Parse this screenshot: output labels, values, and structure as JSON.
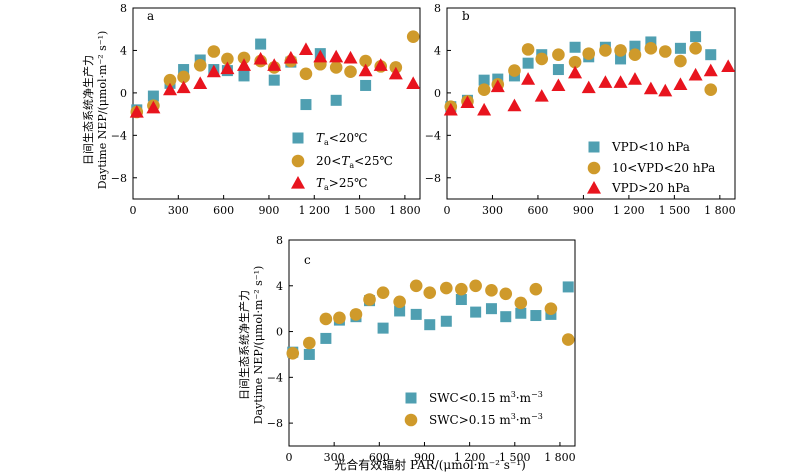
{
  "colors": {
    "square": "#4f9fb1",
    "circle": "#cf9a2b",
    "triangle": "#e8141e"
  },
  "shared": {
    "x_ticks": [
      "0",
      "300",
      "600",
      "900",
      "1 200",
      "1 500",
      "1 800"
    ],
    "y_ticks": [
      "8",
      "4",
      "0",
      "−4",
      "−8"
    ],
    "ylabel_cn": "日间生态系统净生产力",
    "ylabel_en": "Daytime NEP/(μmol·m⁻² s⁻¹)",
    "xlabel": "光合有效辐射 PAR/(μmol·m⁻² s⁻¹)"
  },
  "chart_data": [
    {
      "panel": "a",
      "type": "scatter",
      "xlim": [
        0,
        1900
      ],
      "ylim": [
        -10,
        8
      ],
      "legend_placement": "bottom-center",
      "series": [
        {
          "name_main": "T",
          "name_sub": "a",
          "name_rest": "<20℃",
          "name": "Ta<20℃",
          "marker": "square",
          "x": [
            25,
            135,
            245,
            335,
            445,
            535,
            625,
            735,
            845,
            935,
            1045,
            1145,
            1240,
            1345,
            1540
          ],
          "y": [
            -1.6,
            -0.3,
            0.9,
            2.2,
            3.1,
            2.2,
            2.1,
            1.6,
            4.6,
            1.2,
            2.9,
            -1.1,
            3.7,
            -0.7,
            0.7
          ]
        },
        {
          "name_pre": "20<",
          "name_main": "T",
          "name_sub": "a",
          "name_rest": "<25℃",
          "name": "20<Ta<25℃",
          "marker": "circle",
          "x": [
            25,
            135,
            245,
            335,
            445,
            535,
            625,
            735,
            845,
            935,
            1045,
            1145,
            1240,
            1345,
            1440,
            1540,
            1640,
            1740,
            1855
          ],
          "y": [
            -1.8,
            -1.2,
            1.2,
            1.5,
            2.6,
            3.9,
            3.2,
            3.3,
            3.0,
            2.4,
            3.0,
            1.8,
            2.7,
            2.4,
            2.0,
            3.0,
            2.5,
            2.4,
            5.3
          ]
        },
        {
          "name_main": "T",
          "name_sub": "a",
          "name_rest": ">25℃",
          "name": "Ta>25℃",
          "marker": "triangle",
          "x": [
            25,
            135,
            245,
            335,
            445,
            535,
            625,
            735,
            845,
            935,
            1045,
            1145,
            1240,
            1345,
            1440,
            1540,
            1640,
            1740,
            1855
          ],
          "y": [
            -1.8,
            -1.4,
            0.3,
            0.5,
            0.9,
            2.0,
            2.3,
            2.6,
            3.2,
            2.6,
            3.3,
            4.1,
            3.4,
            3.4,
            3.3,
            2.1,
            2.6,
            1.8,
            0.9
          ]
        }
      ]
    },
    {
      "panel": "b",
      "type": "scatter",
      "xlim": [
        0,
        1900
      ],
      "ylim": [
        -10,
        8
      ],
      "legend_placement": "bottom-center",
      "series": [
        {
          "name": "VPD<10 hPa",
          "marker": "square",
          "x": [
            25,
            135,
            245,
            335,
            445,
            535,
            625,
            735,
            845,
            935,
            1045,
            1145,
            1240,
            1345,
            1540,
            1640,
            1740
          ],
          "y": [
            -1.3,
            -0.7,
            1.2,
            1.3,
            1.6,
            2.8,
            3.6,
            2.2,
            4.3,
            3.4,
            4.3,
            3.2,
            4.4,
            4.8,
            4.2,
            5.3,
            3.6
          ]
        },
        {
          "name": "10<VPD<20 hPa",
          "marker": "circle",
          "x": [
            25,
            135,
            245,
            335,
            445,
            535,
            625,
            735,
            845,
            935,
            1045,
            1145,
            1240,
            1345,
            1440,
            1540,
            1640,
            1740
          ],
          "y": [
            -1.3,
            -0.8,
            0.3,
            0.8,
            2.1,
            4.1,
            3.2,
            3.6,
            2.9,
            3.7,
            4.0,
            4.0,
            3.6,
            4.2,
            3.9,
            3.0,
            4.2,
            0.3
          ]
        },
        {
          "name": "VPD>20 hPa",
          "marker": "triangle",
          "x": [
            25,
            135,
            245,
            335,
            445,
            535,
            625,
            735,
            845,
            935,
            1045,
            1145,
            1240,
            1345,
            1440,
            1540,
            1640,
            1740,
            1855
          ],
          "y": [
            -1.6,
            -0.9,
            -1.6,
            0.6,
            -1.2,
            1.3,
            -0.3,
            0.7,
            1.9,
            0.5,
            1.0,
            1.0,
            1.3,
            0.4,
            0.2,
            0.8,
            1.7,
            2.1,
            2.5
          ]
        }
      ]
    },
    {
      "panel": "c",
      "type": "scatter",
      "xlim": [
        0,
        1900
      ],
      "ylim": [
        -10,
        8
      ],
      "legend_placement": "bottom-center",
      "series": [
        {
          "name_pre": "SWC<0.15 m",
          "name_sup": "3",
          "name_mid": "·m",
          "name_sup2": "−3",
          "name": "SWC<0.15 m³·m⁻³",
          "marker": "square",
          "x": [
            25,
            135,
            245,
            335,
            445,
            535,
            625,
            735,
            845,
            935,
            1045,
            1145,
            1240,
            1345,
            1440,
            1540,
            1640,
            1740,
            1855
          ],
          "y": [
            -1.8,
            -2.0,
            -0.6,
            1.0,
            1.3,
            2.7,
            0.3,
            1.8,
            1.5,
            0.6,
            0.9,
            2.8,
            1.7,
            2.0,
            1.3,
            1.6,
            1.4,
            1.5,
            3.9
          ]
        },
        {
          "name_pre": "SWC>0.15 m",
          "name_sup": "3",
          "name_mid": "·m",
          "name_sup2": "−3",
          "name": "SWC>0.15 m³·m⁻³",
          "marker": "circle",
          "x": [
            25,
            135,
            245,
            335,
            445,
            535,
            625,
            735,
            845,
            935,
            1045,
            1145,
            1240,
            1345,
            1440,
            1540,
            1640,
            1740,
            1855
          ],
          "y": [
            -1.9,
            -1.0,
            1.1,
            1.2,
            1.5,
            2.8,
            3.4,
            2.6,
            4.0,
            3.4,
            3.8,
            3.7,
            4.0,
            3.6,
            3.3,
            2.5,
            3.7,
            2.0,
            -0.7
          ]
        }
      ]
    }
  ]
}
